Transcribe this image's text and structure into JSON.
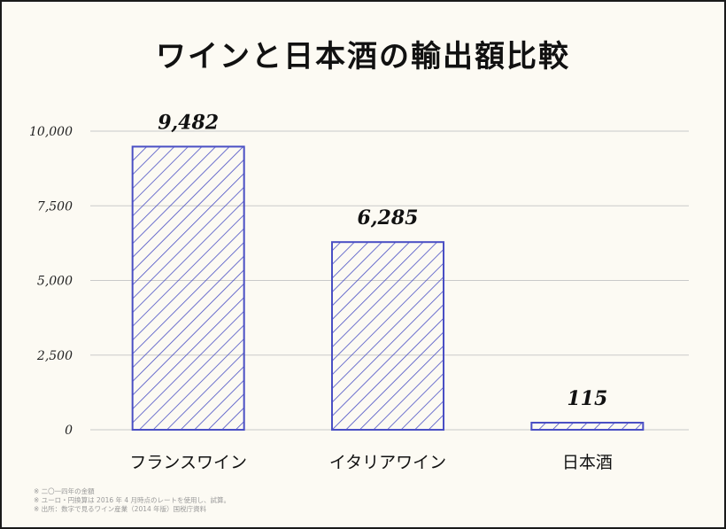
{
  "title": "ワインと日本酒の輸出額比較",
  "colors": {
    "background": "#fcfaf3",
    "bar_stroke": "#4a4fc4",
    "grid": "#c9c9c9",
    "text": "#111111",
    "notes": "#9a9a9a"
  },
  "chart_data": {
    "type": "bar",
    "title": "ワインと日本酒の輸出額比較",
    "categories": [
      "フランスワイン",
      "イタリアワイン",
      "日本酒"
    ],
    "values": [
      9482,
      6285,
      115
    ],
    "value_labels": [
      "9,482",
      "6,285",
      "115"
    ],
    "ylim": [
      0,
      10000
    ],
    "yticks": [
      0,
      2500,
      5000,
      7500,
      10000
    ],
    "ytick_labels": [
      "0",
      "2,500",
      "5,000",
      "7,500",
      "10,000"
    ],
    "xlabel": "",
    "ylabel": "",
    "grid": true,
    "bar_fill": "diagonal-hatch"
  },
  "notes": [
    "※ 二〇一四年の金額",
    "※ ユーロ・円換算は 2016 年 4 月時点のレートを使用し、試算。",
    "※ 出所：数字で見るワイン産業（2014 年版）国税庁資料"
  ]
}
